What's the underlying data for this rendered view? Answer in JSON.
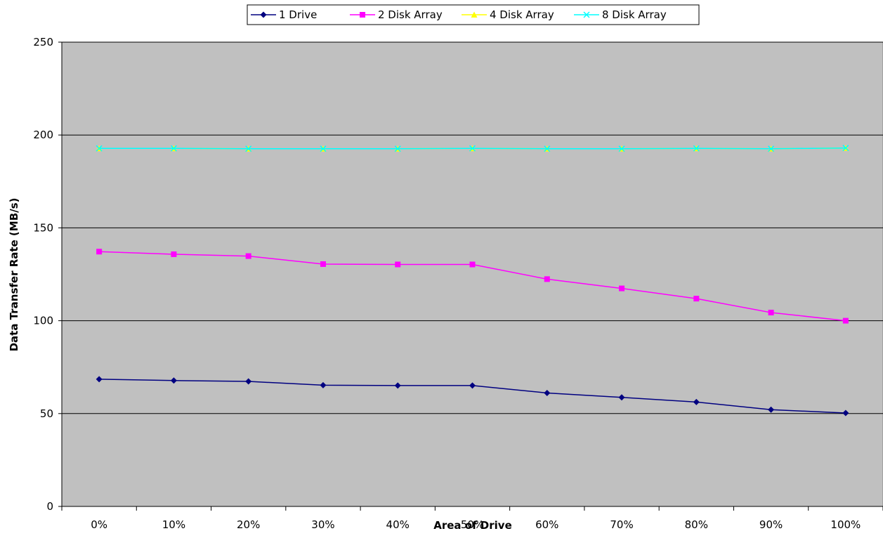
{
  "chart_data": {
    "type": "line",
    "title": "",
    "xlabel": "Area of Drive",
    "ylabel": "Data Transfer Rate (MB/s)",
    "categories": [
      "0%",
      "10%",
      "20%",
      "30%",
      "40%",
      "50%",
      "60%",
      "70%",
      "80%",
      "90%",
      "100%"
    ],
    "ylim": [
      0,
      250
    ],
    "yticks": [
      "0",
      "50",
      "100",
      "150",
      "200",
      "250"
    ],
    "grid": "horizontal major gridlines",
    "plot_background": "#c0c0c0",
    "legend_position": "top",
    "series": [
      {
        "name": "1 Drive",
        "color": "#000080",
        "marker": "diamond",
        "values": [
          68.5,
          67.8,
          67.3,
          65.3,
          65.1,
          65.1,
          61.1,
          58.7,
          56.2,
          52.1,
          50.3
        ]
      },
      {
        "name": "2 Disk Array",
        "color": "#ff00ff",
        "marker": "square",
        "values": [
          137.2,
          135.8,
          134.8,
          130.5,
          130.3,
          130.3,
          122.4,
          117.4,
          111.9,
          104.4,
          100.0
        ]
      },
      {
        "name": "4 Disk Array",
        "color": "#ffff00",
        "marker": "triangle",
        "values": [
          192.8,
          192.8,
          192.6,
          192.6,
          192.6,
          192.8,
          192.6,
          192.6,
          192.8,
          192.6,
          193.0
        ]
      },
      {
        "name": "8 Disk Array",
        "color": "#00ffff",
        "marker": "x",
        "values": [
          192.8,
          192.8,
          192.6,
          192.6,
          192.6,
          192.8,
          192.6,
          192.6,
          192.8,
          192.6,
          193.0
        ]
      }
    ]
  }
}
